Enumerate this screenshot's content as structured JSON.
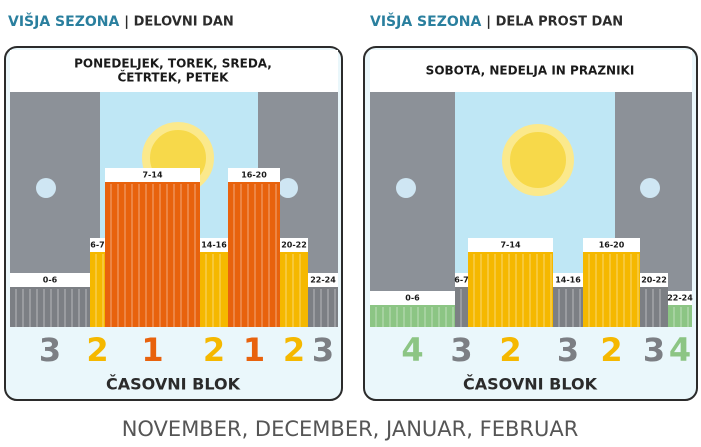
{
  "panels": [
    {
      "heading_main": "VIŠJA SEZONA",
      "heading_sub": "| DELOVNI DAN",
      "title_lines": [
        "PONEDELJEK, TOREK, SREDA,",
        "ČETRTEK, PETEK"
      ],
      "segments": [
        {
          "label": "0-6",
          "block": 3
        },
        {
          "label": "6-7",
          "block": 2
        },
        {
          "label": "7-14",
          "block": 1
        },
        {
          "label": "14-16",
          "block": 2
        },
        {
          "label": "16-20",
          "block": 1
        },
        {
          "label": "20-22",
          "block": 2
        },
        {
          "label": "22-24",
          "block": 3
        }
      ],
      "axis_label": "ČASOVNI BLOK"
    },
    {
      "heading_main": "VIŠJA SEZONA",
      "heading_sub": "| DELA PROST DAN",
      "title_lines": [
        "SOBOTA, NEDELJA IN PRAZNIKI"
      ],
      "segments": [
        {
          "label": "0-6",
          "block": 4
        },
        {
          "label": "6-7",
          "block": 3
        },
        {
          "label": "7-14",
          "block": 2
        },
        {
          "label": "14-16",
          "block": 3
        },
        {
          "label": "16-20",
          "block": 2
        },
        {
          "label": "20-22",
          "block": 3
        },
        {
          "label": "22-24",
          "block": 4
        }
      ],
      "axis_label": "ČASOVNI BLOK"
    }
  ],
  "footer": "NOVEMBER, DECEMBER, JANUAR, FEBRUAR"
}
